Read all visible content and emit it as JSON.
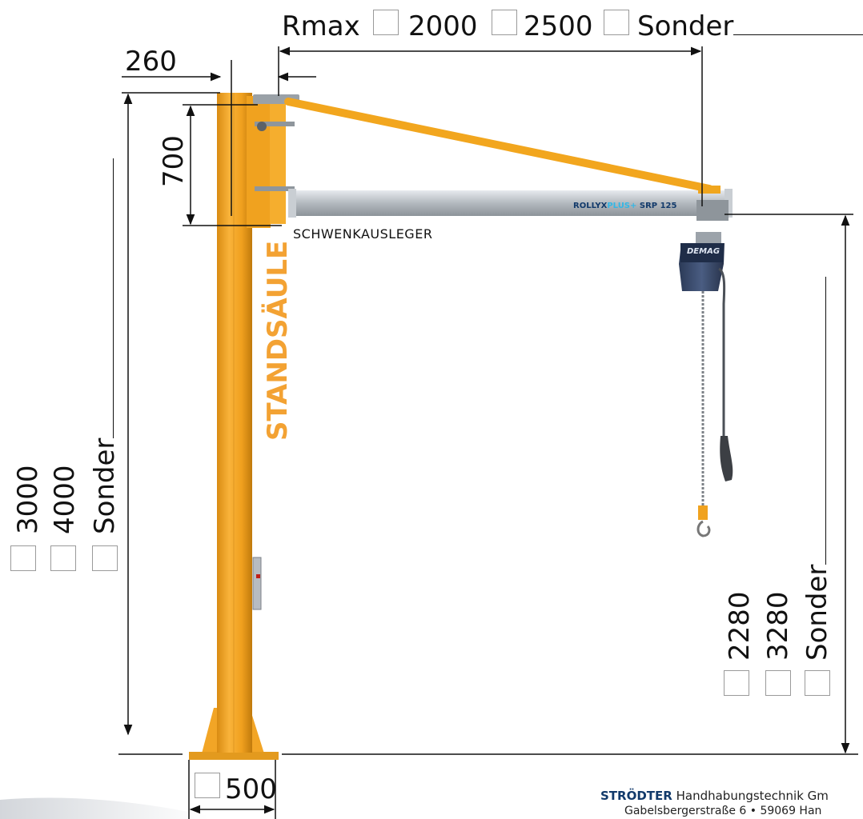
{
  "rmax": {
    "label": "Rmax",
    "options": [
      "2000",
      "2500",
      "Sonder"
    ]
  },
  "arm_offset": "260",
  "arm_height": "700",
  "column_label": "STANDSÄULE",
  "jib_label": "SCHWENKAUSLEGER",
  "profile_label": {
    "brand": "ROLLYX",
    "brand_accent": "PLUS+",
    "model": "SRP 125"
  },
  "hoist_brand": "DEMAG",
  "column_height_options": [
    "3000",
    "4000",
    "Sonder"
  ],
  "hook_height_options": [
    "2280",
    "3280",
    "Sonder"
  ],
  "base_width": "500",
  "company": {
    "name": "STRÖDTER",
    "rest": " Handhabungstechnik Gm",
    "address": "Gabelsbergerstraße 6 • 59069 Han"
  },
  "colors": {
    "column_orange": "#f5a623",
    "column_dark": "#c97f10",
    "beam_grey": "#b9bec3",
    "label_orange": "#f3a233",
    "brand_blue": "#123a6b",
    "accent_cyan": "#33b7e6"
  }
}
